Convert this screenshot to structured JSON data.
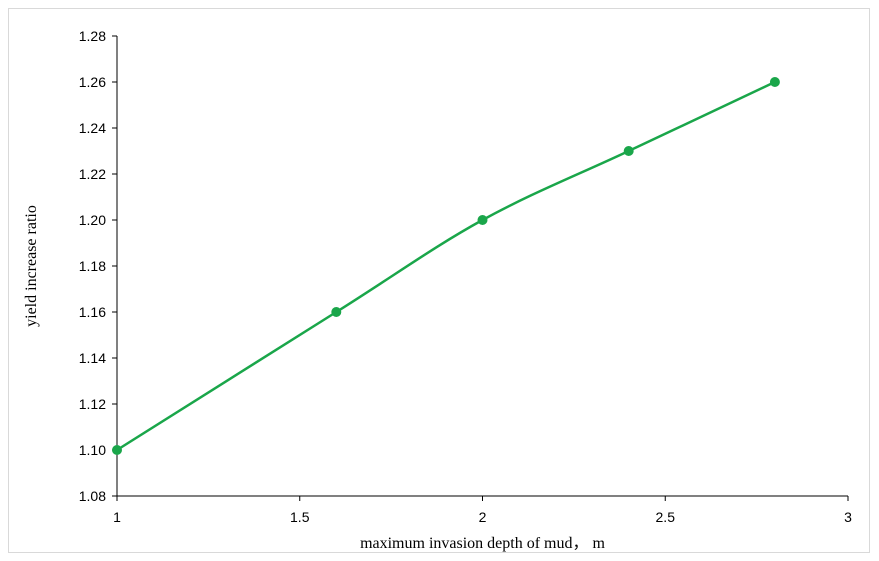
{
  "chart_data": {
    "type": "line",
    "title": "",
    "xlabel": "maximum  invasion depth of mud， m",
    "ylabel": "yield increase ratio",
    "xlim": [
      1,
      3
    ],
    "ylim": [
      1.08,
      1.28
    ],
    "x_ticks": [
      "1",
      "1.5",
      "2",
      "2.5",
      "3"
    ],
    "y_ticks": [
      "1.08",
      "1.10",
      "1.12",
      "1.14",
      "1.16",
      "1.18",
      "1.20",
      "1.22",
      "1.24",
      "1.26",
      "1.28"
    ],
    "grid": false,
    "legend": "none",
    "smooth": true,
    "series": [
      {
        "x": [
          1.0,
          1.6,
          2.0,
          2.4,
          2.8
        ],
        "y": [
          1.1,
          1.16,
          1.2,
          1.23,
          1.26
        ],
        "color": "#1aa64a"
      }
    ]
  }
}
